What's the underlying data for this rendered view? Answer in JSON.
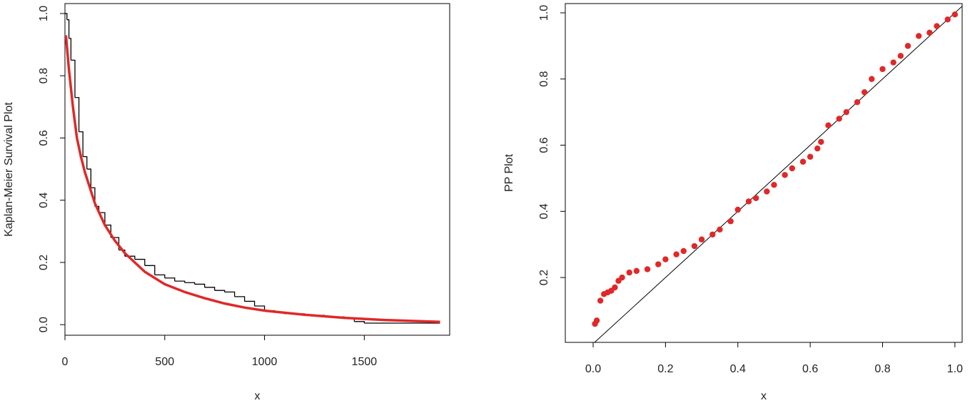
{
  "chart_data": [
    {
      "type": "line",
      "x_label": "x",
      "y_label": "Kaplan-Meier Survival Plot",
      "xlim": [
        0,
        1928
      ],
      "ylim": [
        -0.034,
        1.032
      ],
      "xticks": [
        0,
        500,
        1000,
        1500
      ],
      "yticks": [
        {
          "value": 0,
          "label": "0.0"
        },
        0.2,
        0.4,
        0.6,
        0.8,
        {
          "value": 1,
          "label": "1.0"
        }
      ],
      "series": [
        {
          "color": "#000000",
          "step": true,
          "x": [
            0,
            10,
            20,
            30,
            50,
            70,
            90,
            110,
            130,
            150,
            170,
            200,
            230,
            270,
            300,
            350,
            400,
            450,
            500,
            550,
            600,
            650,
            700,
            750,
            800,
            850,
            900,
            950,
            1000,
            1050,
            1100,
            1200,
            1300,
            1400,
            1450,
            1500,
            1880
          ],
          "values": [
            1,
            0.98,
            0.92,
            0.85,
            0.73,
            0.62,
            0.54,
            0.5,
            0.44,
            0.38,
            0.36,
            0.32,
            0.28,
            0.24,
            0.22,
            0.21,
            0.19,
            0.16,
            0.15,
            0.14,
            0.135,
            0.13,
            0.12,
            0.11,
            0.105,
            0.09,
            0.075,
            0.06,
            0.045,
            0.04,
            0.035,
            0.03,
            0.025,
            0.02,
            0.01,
            0.005,
            0.005
          ]
        },
        {
          "color": "#e02828",
          "x": [
            5,
            20,
            40,
            60,
            80,
            100,
            150,
            200,
            250,
            300,
            400,
            500,
            600,
            700,
            800,
            900,
            1000,
            1200,
            1400,
            1600,
            1880
          ],
          "values": [
            0.93,
            0.82,
            0.7,
            0.6,
            0.54,
            0.49,
            0.39,
            0.32,
            0.27,
            0.23,
            0.17,
            0.13,
            0.105,
            0.085,
            0.068,
            0.055,
            0.045,
            0.032,
            0.022,
            0.015,
            0.009
          ]
        }
      ]
    },
    {
      "type": "scatter",
      "x_label": "x",
      "y_label": "PP Plot",
      "xlim": [
        -0.077,
        1.02
      ],
      "ylim": [
        0.004,
        1.028
      ],
      "xticks": [
        {
          "value": 0,
          "label": "0.0"
        },
        0.2,
        0.4,
        0.6,
        0.8,
        {
          "value": 1,
          "label": "1.0"
        }
      ],
      "yticks": [
        0.2,
        0.4,
        0.6,
        0.8,
        {
          "value": 1,
          "label": "1.0"
        }
      ],
      "abline": {
        "intercept": 0,
        "slope": 1,
        "color": "#000000"
      },
      "series": [
        {
          "color": "#e02828",
          "x": [
            0.005,
            0.01,
            0.02,
            0.03,
            0.04,
            0.05,
            0.06,
            0.07,
            0.08,
            0.1,
            0.12,
            0.15,
            0.18,
            0.2,
            0.23,
            0.25,
            0.28,
            0.3,
            0.33,
            0.35,
            0.38,
            0.4,
            0.43,
            0.45,
            0.48,
            0.5,
            0.53,
            0.55,
            0.58,
            0.6,
            0.62,
            0.63,
            0.65,
            0.68,
            0.7,
            0.73,
            0.75,
            0.77,
            0.8,
            0.83,
            0.85,
            0.87,
            0.9,
            0.93,
            0.95,
            0.98,
            1.0
          ],
          "values": [
            0.06,
            0.07,
            0.13,
            0.15,
            0.155,
            0.16,
            0.17,
            0.19,
            0.2,
            0.215,
            0.22,
            0.225,
            0.24,
            0.255,
            0.27,
            0.28,
            0.295,
            0.315,
            0.33,
            0.345,
            0.37,
            0.405,
            0.43,
            0.44,
            0.46,
            0.48,
            0.51,
            0.53,
            0.55,
            0.565,
            0.59,
            0.61,
            0.66,
            0.68,
            0.7,
            0.73,
            0.76,
            0.8,
            0.83,
            0.85,
            0.87,
            0.9,
            0.93,
            0.94,
            0.96,
            0.98,
            0.995
          ]
        }
      ]
    }
  ]
}
